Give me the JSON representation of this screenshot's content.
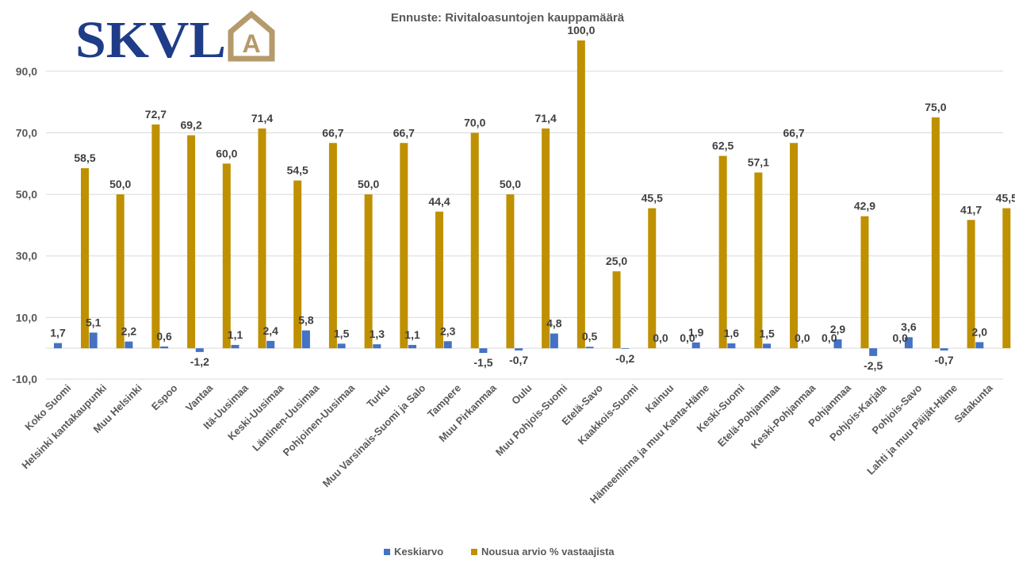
{
  "logo": {
    "text": "SKVL",
    "emblem_letter": "A",
    "text_color": "#1F3C88",
    "emblem_color": "#B59A6A"
  },
  "chart_data": {
    "type": "bar",
    "title": "Ennuste: Rivitaloasuntojen kauppamäärä",
    "xlabel": "",
    "ylabel": "",
    "ylim": [
      -10,
      100
    ],
    "yticks": [
      -10,
      10,
      30,
      50,
      70,
      90
    ],
    "ytick_labels": [
      "-10,0",
      "10,0",
      "30,0",
      "50,0",
      "70,0",
      "90,0"
    ],
    "grid": true,
    "legend_position": "bottom",
    "categories": [
      "Koko Suomi",
      "Helsinki kantakaupunki",
      "Muu Helsinki",
      "Espoo",
      "Vantaa",
      "Itä-Uusimaa",
      "Keski-Uusimaa",
      "Läntinen-Uusimaa",
      "Pohjoinen-Uusimaa",
      "Turku",
      "Muu Varsinais-Suomi ja Salo",
      "Tampere",
      "Muu Pirkanmaa",
      "Oulu",
      "Muu Pohjois-Suomi",
      "Etelä-Savo",
      "Kaakkois-Suomi",
      "Kainuu",
      "Hämeenlinna ja muu Kanta-Häme",
      "Keski-Suomi",
      "Etelä-Pohjanmaa",
      "Keski-Pohjanmaa",
      "Pohjanmaa",
      "Pohjois-Karjala",
      "Pohjois-Savo",
      "Lahti ja muu Päijät-Häme",
      "Satakunta"
    ],
    "series": [
      {
        "name": "Keskiarvo",
        "color": "#4472C4",
        "values": [
          1.7,
          5.1,
          2.2,
          0.6,
          -1.2,
          1.1,
          2.4,
          5.8,
          1.5,
          1.3,
          1.1,
          2.3,
          -1.5,
          -0.7,
          4.8,
          0.5,
          -0.2,
          0.0,
          1.9,
          1.6,
          1.5,
          0.0,
          2.9,
          -2.5,
          3.6,
          -0.7,
          2.0
        ],
        "labels": [
          "1,7",
          "5,1",
          "2,2",
          "0,6",
          "-1,2",
          "1,1",
          "2,4",
          "5,8",
          "1,5",
          "1,3",
          "1,1",
          "2,3",
          "-1,5",
          "-0,7",
          "4,8",
          "0,5",
          "-0,2",
          "0,0",
          "1,9",
          "1,6",
          "1,5",
          "0,0",
          "2,9",
          "-2,5",
          "3,6",
          "-0,7",
          "2,0"
        ]
      },
      {
        "name": "Nousua arvio % vastaajista",
        "color": "#BF9000",
        "values": [
          58.5,
          50.0,
          72.7,
          69.2,
          60.0,
          71.4,
          54.5,
          66.7,
          50.0,
          66.7,
          44.4,
          70.0,
          50.0,
          71.4,
          100.0,
          25.0,
          45.5,
          0.0,
          62.5,
          57.1,
          66.7,
          0.0,
          42.9,
          0.0,
          75.0,
          41.7,
          45.5
        ],
        "labels": [
          "58,5",
          "50,0",
          "72,7",
          "69,2",
          "60,0",
          "71,4",
          "54,5",
          "66,7",
          "50,0",
          "66,7",
          "44,4",
          "70,0",
          "50,0",
          "71,4",
          "100,0",
          "25,0",
          "45,5",
          "0,0",
          "62,5",
          "57,1",
          "66,7",
          "0,0",
          "42,9",
          "0,0",
          "75,0",
          "41,7",
          "45,5"
        ]
      }
    ]
  }
}
